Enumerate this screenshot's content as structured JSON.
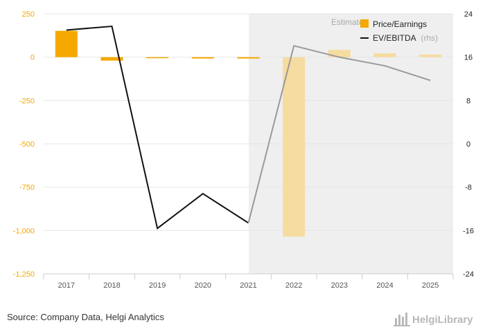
{
  "chart_data": {
    "type": "bar+line",
    "categories": [
      "2017",
      "2018",
      "2019",
      "2020",
      "2021",
      "2022",
      "2023",
      "2024",
      "2025"
    ],
    "estimates_from": "2022",
    "estimates_label": "Estimates",
    "series": [
      {
        "name": "Price/Earnings",
        "type": "bar",
        "axis": "left",
        "values": [
          152,
          -20,
          -5,
          -8,
          -8,
          -1035,
          42,
          22,
          15
        ],
        "color": "#f5a800",
        "estimate_color": "#f5dca0"
      },
      {
        "name": "EV/EBITDA",
        "name_suffix": "(rhs)",
        "type": "line",
        "axis": "right",
        "values": [
          21,
          21.7,
          -15.6,
          -9.2,
          -14.6,
          18.1,
          16,
          14.4,
          11.7
        ],
        "color": "#111111",
        "estimate_color": "#999999"
      }
    ],
    "y_left": {
      "min": -1250,
      "max": 250,
      "ticks": [
        250,
        0,
        -250,
        -500,
        -750,
        -1000,
        -1250
      ],
      "tick_labels": [
        "250",
        "0",
        "-250",
        "-500",
        "-750",
        "-1,000",
        "-1,250"
      ]
    },
    "y_right": {
      "min": -24,
      "max": 24,
      "ticks": [
        24,
        16,
        8,
        0,
        -8,
        -16,
        -24
      ],
      "tick_labels": [
        "24",
        "16",
        "8",
        "0",
        "-8",
        "-16",
        "-24"
      ]
    },
    "grid": true,
    "legend_position": "top-right"
  },
  "footer": {
    "source": "Source: Company Data, Helgi Analytics",
    "logo_text": "HelgiLibrary"
  },
  "colors": {
    "shade": "#efefef",
    "grid": "#e6e6e6"
  }
}
